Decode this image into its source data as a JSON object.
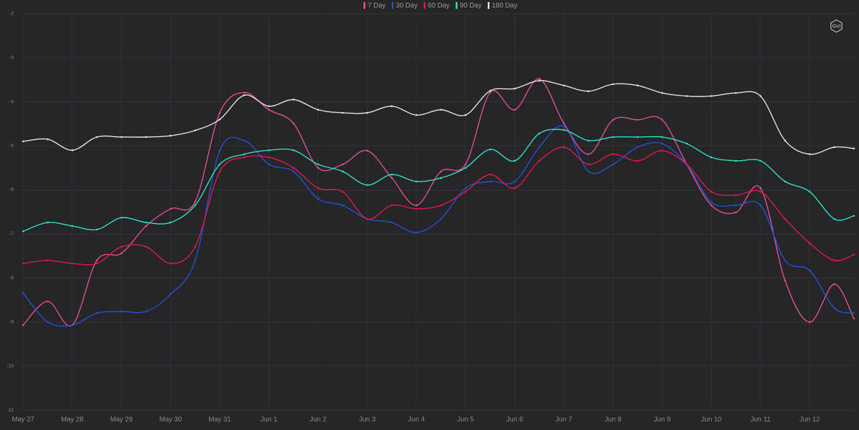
{
  "logo": "GVI",
  "chart_data": {
    "type": "line",
    "x": [
      0,
      0.5,
      1,
      1.5,
      2,
      2.5,
      3,
      3.5,
      4,
      4.5,
      5,
      5.5,
      6,
      6.5,
      7,
      7.5,
      8,
      8.5,
      9,
      9.5,
      10,
      10.5,
      11,
      11.5,
      12,
      12.5,
      13,
      13.5,
      14,
      14.5,
      15,
      15.5,
      16,
      16.5,
      16.9
    ],
    "xlim": [
      -0.08,
      16.92
    ],
    "xticks": [
      {
        "value": 0,
        "label": "May 27"
      },
      {
        "value": 1,
        "label": "May 28"
      },
      {
        "value": 2,
        "label": "May 29"
      },
      {
        "value": 3,
        "label": "May 30"
      },
      {
        "value": 4,
        "label": "May 31"
      },
      {
        "value": 5,
        "label": "Jun 1"
      },
      {
        "value": 6,
        "label": "Jun 2"
      },
      {
        "value": 7,
        "label": "Jun 3"
      },
      {
        "value": 8,
        "label": "Jun 4"
      },
      {
        "value": 9,
        "label": "Jun 5"
      },
      {
        "value": 10,
        "label": "Jun 6"
      },
      {
        "value": 11,
        "label": "Jun 7"
      },
      {
        "value": 12,
        "label": "Jun 8"
      },
      {
        "value": 13,
        "label": "Jun 9"
      },
      {
        "value": 14,
        "label": "Jun 10"
      },
      {
        "value": 15,
        "label": "Jun 11"
      },
      {
        "value": 16,
        "label": "Jun 12"
      }
    ],
    "ylim": [
      -11,
      -2
    ],
    "yticks": [
      -2,
      -3,
      -4,
      -5,
      -6,
      -7,
      -8,
      -9,
      -10,
      -11
    ],
    "grid": true,
    "legend": "top",
    "series": [
      {
        "name": "7 Day",
        "color": "#e8509a",
        "values": [
          -9.07,
          -8.53,
          -9.07,
          -7.6,
          -7.44,
          -6.82,
          -6.43,
          -6.27,
          -4.25,
          -3.79,
          -4.18,
          -4.49,
          -5.5,
          -5.42,
          -5.11,
          -5.73,
          -6.35,
          -5.58,
          -5.42,
          -3.79,
          -4.18,
          -3.48,
          -4.49,
          -5.19,
          -4.41,
          -4.41,
          -4.41,
          -5.42,
          -6.35,
          -6.51,
          -5.96,
          -8.06,
          -9.0,
          -8.14,
          -8.92
        ]
      },
      {
        "name": "30 Day",
        "color": "#1f55d6",
        "values": [
          -8.34,
          -9.0,
          -9.07,
          -8.8,
          -8.76,
          -8.76,
          -8.37,
          -7.6,
          -5.11,
          -4.88,
          -5.42,
          -5.58,
          -6.2,
          -6.35,
          -6.66,
          -6.74,
          -6.97,
          -6.66,
          -5.96,
          -5.81,
          -5.81,
          -5.03,
          -4.56,
          -5.58,
          -5.42,
          -5.03,
          -4.95,
          -5.42,
          -6.28,
          -6.35,
          -6.35,
          -7.6,
          -7.83,
          -8.68,
          -8.8
        ]
      },
      {
        "name": "60 Day",
        "color": "#e8194f",
        "values": [
          -7.67,
          -7.6,
          -7.67,
          -7.67,
          -7.29,
          -7.29,
          -7.67,
          -7.29,
          -5.58,
          -5.26,
          -5.26,
          -5.5,
          -5.96,
          -6.04,
          -6.66,
          -6.35,
          -6.43,
          -6.35,
          -6.04,
          -5.65,
          -5.96,
          -5.34,
          -5.03,
          -5.42,
          -5.19,
          -5.34,
          -5.11,
          -5.42,
          -6.04,
          -6.12,
          -6.04,
          -6.66,
          -7.21,
          -7.6,
          -7.47
        ]
      },
      {
        "name": "90 Day",
        "color": "#2ee8c8",
        "values": [
          -6.94,
          -6.74,
          -6.82,
          -6.9,
          -6.63,
          -6.74,
          -6.74,
          -6.35,
          -5.42,
          -5.19,
          -5.1,
          -5.1,
          -5.42,
          -5.58,
          -5.89,
          -5.65,
          -5.81,
          -5.73,
          -5.5,
          -5.08,
          -5.34,
          -4.72,
          -4.64,
          -4.88,
          -4.8,
          -4.8,
          -4.8,
          -4.95,
          -5.26,
          -5.34,
          -5.34,
          -5.81,
          -6.04,
          -6.66,
          -6.59
        ]
      },
      {
        "name": "180 Day",
        "color": "#e8e8e8",
        "values": [
          -4.9,
          -4.85,
          -5.1,
          -4.8,
          -4.8,
          -4.8,
          -4.77,
          -4.65,
          -4.4,
          -3.85,
          -4.1,
          -3.95,
          -4.18,
          -4.25,
          -4.25,
          -4.1,
          -4.3,
          -4.18,
          -4.3,
          -3.75,
          -3.7,
          -3.52,
          -3.63,
          -3.76,
          -3.6,
          -3.63,
          -3.8,
          -3.87,
          -3.87,
          -3.8,
          -3.87,
          -4.88,
          -5.19,
          -5.03,
          -5.06
        ]
      }
    ]
  }
}
